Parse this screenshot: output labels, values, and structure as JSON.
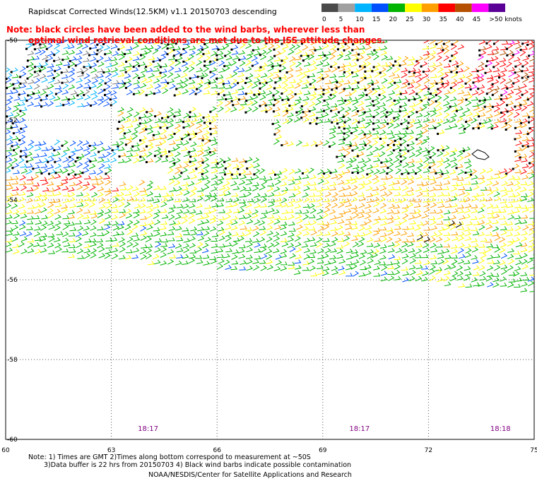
{
  "header": {
    "title": "Rapidscat Corrected Winds(12.5KM) v1.1 20150703 descending",
    "note_line1": "Note: black circles have been added to the wind barbs, wherever less than",
    "note_line2": "optimal wind retrieval conditions are met due to the ISS attitude changes."
  },
  "legend": {
    "labels": [
      "0",
      "5",
      "10",
      "15",
      "20",
      "25",
      "30",
      "35",
      "40",
      "45",
      ">50 knots"
    ],
    "colors": [
      "#4a4a4a",
      "#a0a0a0",
      "#00b4ff",
      "#0050ff",
      "#00b400",
      "#ffff00",
      "#ffa000",
      "#ff0000",
      "#b45000",
      "#ff00ff",
      "#5a0096"
    ]
  },
  "footer": {
    "line1": "Note: 1) Times are GMT 2)Times along bottom correspond to measurement at ~50S",
    "line2": "3)Data buffer is 22 hrs from 20150703 4) Black wind barbs indicate possible contamination",
    "line3": "NOAA/NESDIS/Center for Satellite Applications and Research"
  },
  "chart_data": {
    "type": "scatter",
    "title": "Rapidscat Corrected Winds(12.5KM) v1.1 20150703 descending",
    "x_ticks": [
      "60",
      "63",
      "66",
      "69",
      "72",
      "75"
    ],
    "y_ticks": [
      "-50",
      "-52",
      "-54",
      "-56",
      "-58",
      "-60"
    ],
    "xlim": [
      60,
      75
    ],
    "ylim": [
      -60,
      -50
    ],
    "grid": true,
    "time_labels": [
      {
        "x": 63,
        "label": "18:17"
      },
      {
        "x": 69,
        "label": "18:17"
      },
      {
        "x": 73,
        "label": "18:18"
      }
    ],
    "wind_regions": [
      {
        "name": "north-mixed",
        "lon": [
          60,
          75
        ],
        "lat": [
          -53.2,
          -50
        ],
        "dominant": "mixed 15-40 kt",
        "color": "#00b400"
      },
      {
        "name": "west-blue",
        "lon": [
          60,
          66
        ],
        "lat": [
          -52.5,
          -50
        ],
        "dominant": "10-15 kt",
        "color": "#0050ff"
      },
      {
        "name": "northeast-red",
        "lon": [
          72,
          75
        ],
        "lat": [
          -53,
          -50
        ],
        "dominant": "35-40 kt",
        "color": "#ff0000"
      },
      {
        "name": "central-yellow",
        "lon": [
          60,
          75
        ],
        "lat": [
          -55.5,
          -53.5
        ],
        "dominant": "25 kt",
        "color": "#ffff00"
      },
      {
        "name": "central-orange",
        "lon": [
          62,
          75
        ],
        "lat": [
          -55,
          -53.5
        ],
        "dominant": "30 kt",
        "color": "#ffa000"
      },
      {
        "name": "south-green",
        "lon": [
          60,
          75
        ],
        "lat": [
          -56.7,
          -55.3
        ],
        "dominant": "20 kt",
        "color": "#00b400"
      }
    ]
  }
}
